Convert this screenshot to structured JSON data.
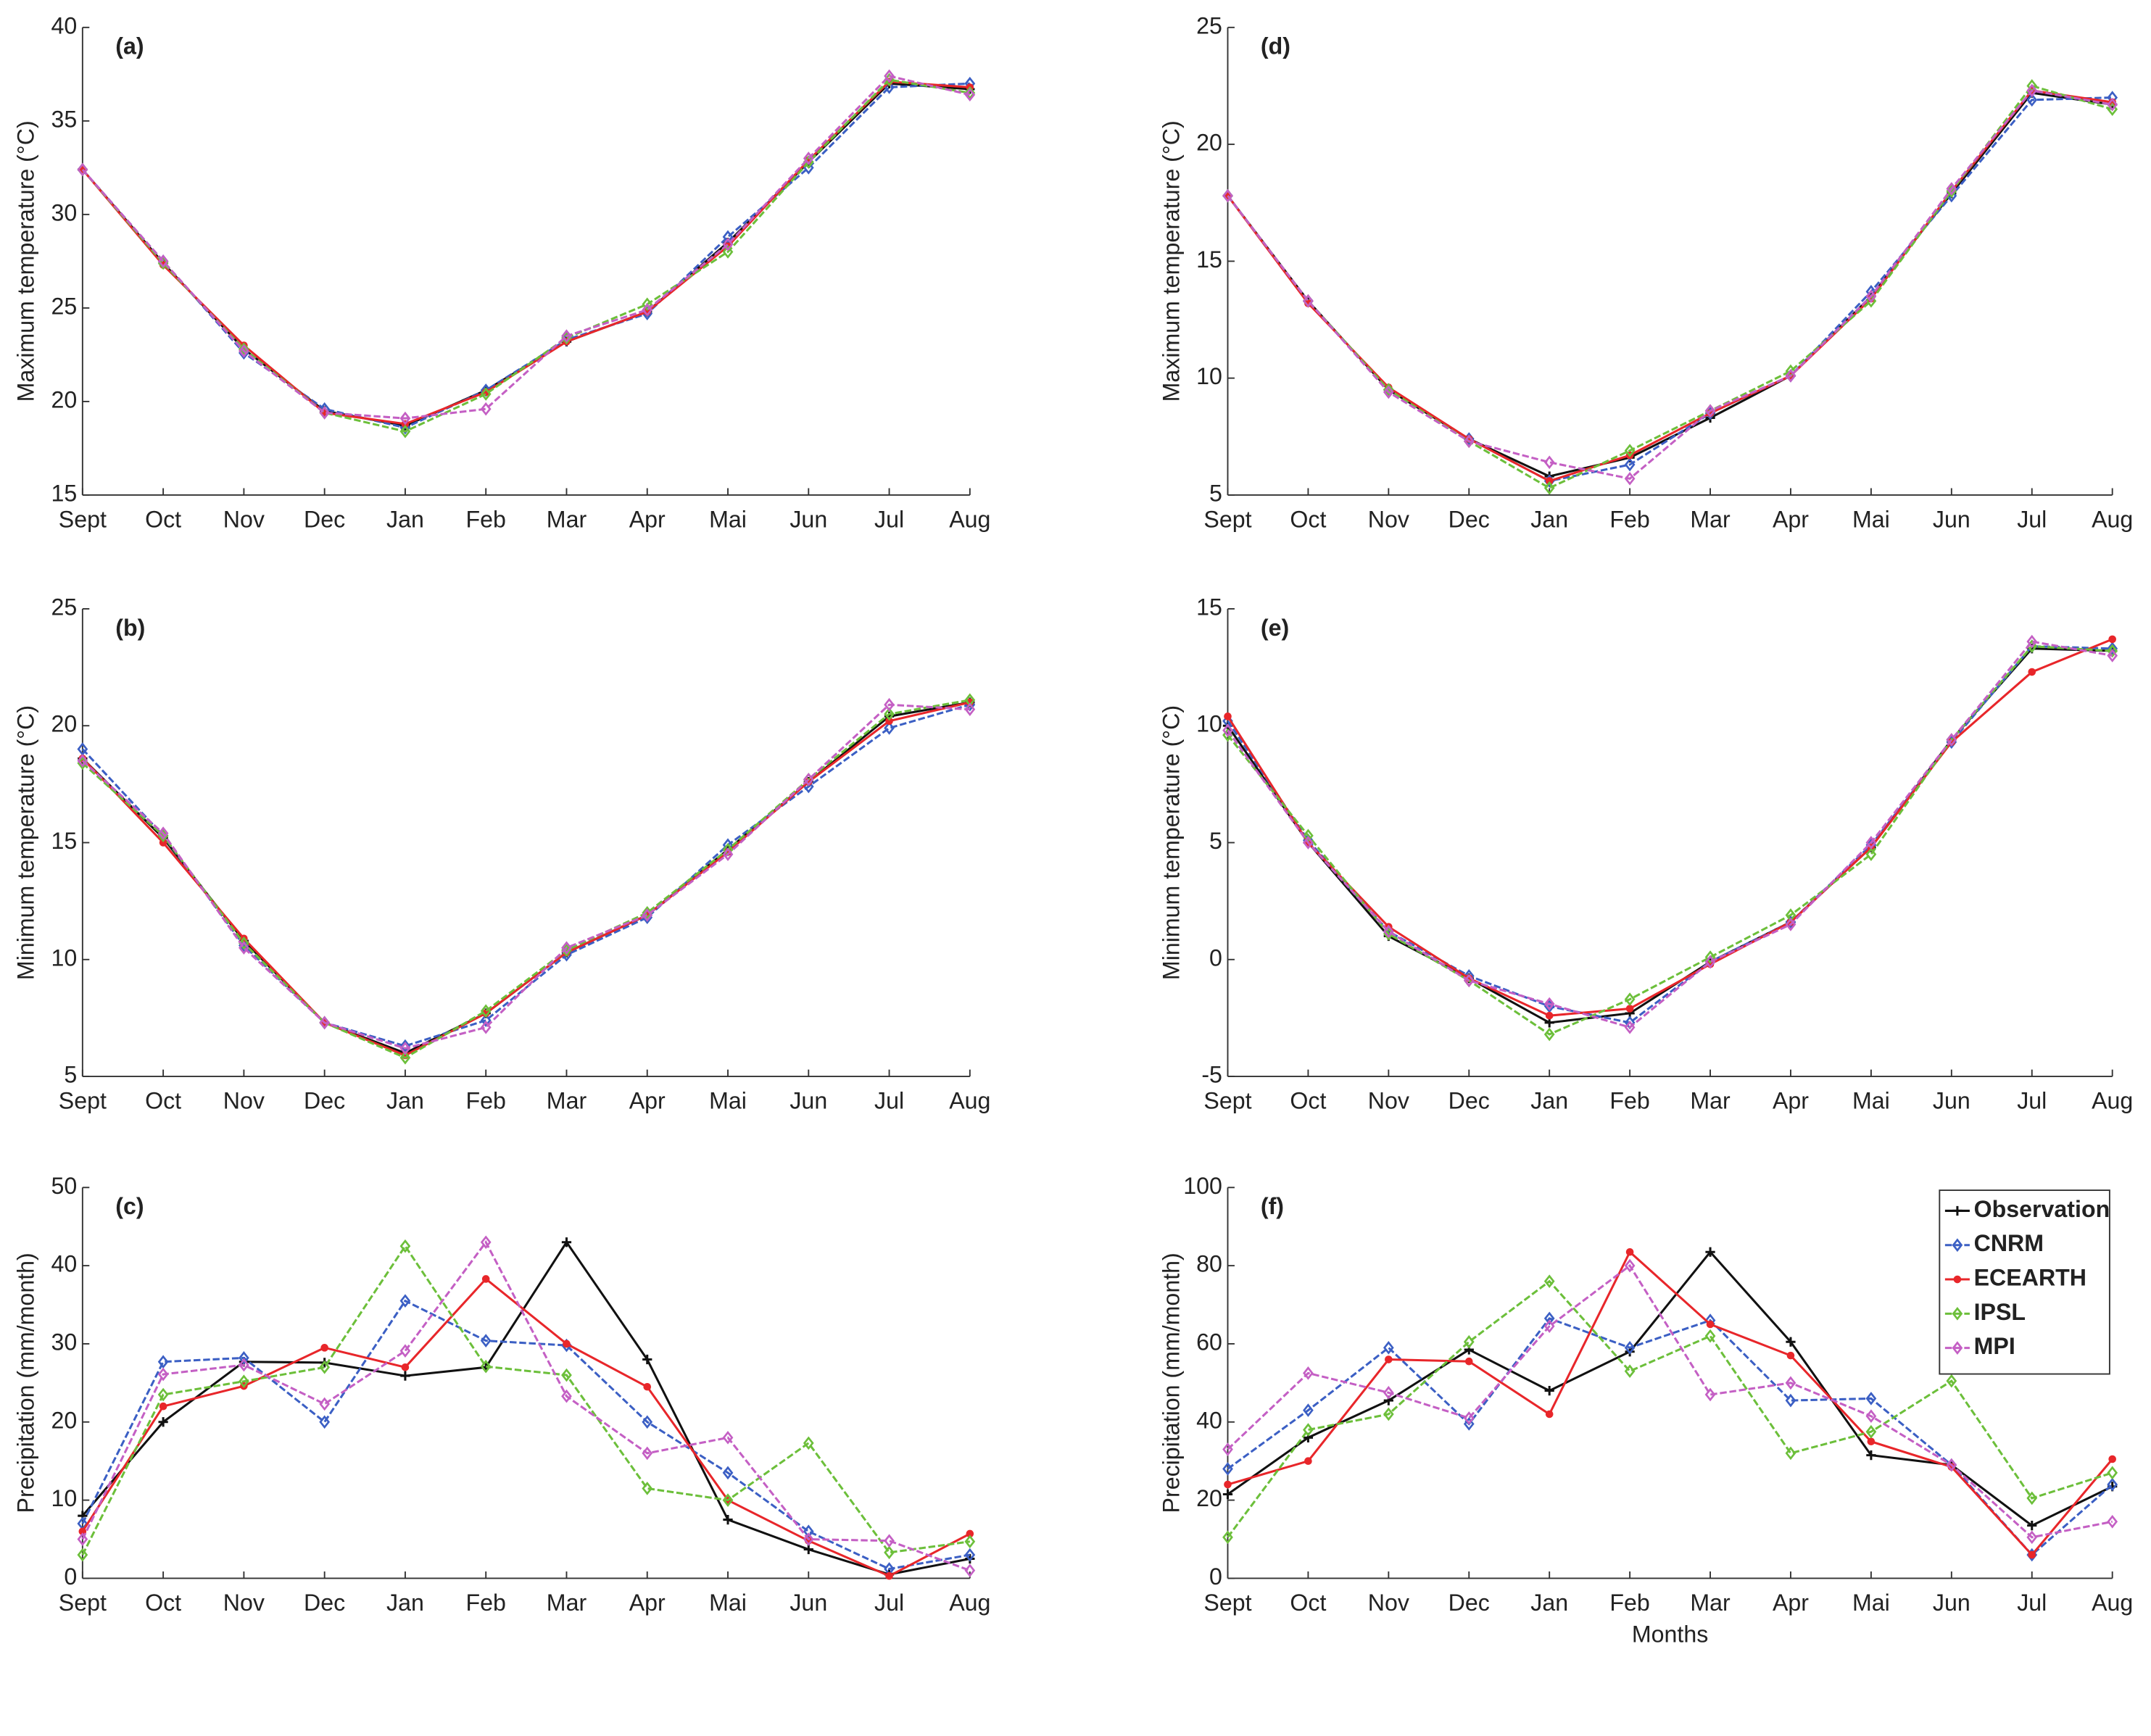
{
  "chart_data": [
    {
      "type": "line",
      "title": "(a)",
      "ylabel": "Maximum temperature (°C)",
      "categories": [
        "Sept",
        "Oct",
        "Nov",
        "Dec",
        "Jan",
        "Feb",
        "Mar",
        "Apr",
        "Mai",
        "Jun",
        "Jul",
        "Aug"
      ],
      "ylim": [
        15,
        40
      ],
      "yticks": [
        15,
        20,
        25,
        30,
        35,
        40
      ],
      "series": [
        {
          "name": "Observation",
          "color": "#111111",
          "marker": "plus",
          "linestyle": "solid",
          "values": [
            32.4,
            27.4,
            22.8,
            19.5,
            18.7,
            20.6,
            23.2,
            24.8,
            28.5,
            32.8,
            37.0,
            36.7
          ]
        },
        {
          "name": "CNRM",
          "color": "#3b5fc4",
          "marker": "diamond",
          "linestyle": "dashed",
          "values": [
            32.4,
            27.5,
            22.6,
            19.6,
            18.6,
            20.6,
            23.3,
            24.7,
            28.8,
            32.5,
            36.8,
            37.0
          ]
        },
        {
          "name": "ECEARTH",
          "color": "#e8262a",
          "marker": "dot",
          "linestyle": "solid",
          "values": [
            32.4,
            27.3,
            23.0,
            19.4,
            18.8,
            20.5,
            23.2,
            24.8,
            28.3,
            32.9,
            37.1,
            36.8
          ]
        },
        {
          "name": "IPSL",
          "color": "#6cbf3a",
          "marker": "diamond",
          "linestyle": "dashed",
          "values": [
            32.4,
            27.4,
            22.8,
            19.4,
            18.4,
            20.4,
            23.4,
            25.2,
            28.0,
            32.8,
            37.2,
            36.5
          ]
        },
        {
          "name": "MPI",
          "color": "#c45fc4",
          "marker": "diamond",
          "linestyle": "dashed",
          "values": [
            32.4,
            27.5,
            22.7,
            19.4,
            19.1,
            19.6,
            23.5,
            24.9,
            28.4,
            33.0,
            37.4,
            36.4
          ]
        }
      ]
    },
    {
      "type": "line",
      "title": "(b)",
      "ylabel": "Minimum temperature (°C)",
      "categories": [
        "Sept",
        "Oct",
        "Nov",
        "Dec",
        "Jan",
        "Feb",
        "Mar",
        "Apr",
        "Mai",
        "Jun",
        "Jul",
        "Aug"
      ],
      "ylim": [
        5,
        25
      ],
      "yticks": [
        5,
        10,
        15,
        20,
        25
      ],
      "series": [
        {
          "name": "Observation",
          "color": "#111111",
          "marker": "plus",
          "linestyle": "solid",
          "values": [
            18.6,
            15.2,
            10.8,
            7.3,
            6.0,
            7.7,
            10.3,
            11.9,
            14.7,
            17.6,
            20.4,
            21.0
          ]
        },
        {
          "name": "CNRM",
          "color": "#3b5fc4",
          "marker": "diamond",
          "linestyle": "dashed",
          "values": [
            19.0,
            15.3,
            10.6,
            7.3,
            6.3,
            7.4,
            10.2,
            11.8,
            14.9,
            17.4,
            19.9,
            20.9
          ]
        },
        {
          "name": "ECEARTH",
          "color": "#e8262a",
          "marker": "dot",
          "linestyle": "solid",
          "values": [
            18.6,
            15.0,
            10.9,
            7.3,
            5.9,
            7.7,
            10.3,
            11.9,
            14.6,
            17.6,
            20.2,
            21.0
          ]
        },
        {
          "name": "IPSL",
          "color": "#6cbf3a",
          "marker": "diamond",
          "linestyle": "dashed",
          "values": [
            18.4,
            15.3,
            10.7,
            7.3,
            5.8,
            7.8,
            10.4,
            12.0,
            14.7,
            17.7,
            20.5,
            21.1
          ]
        },
        {
          "name": "MPI",
          "color": "#c45fc4",
          "marker": "diamond",
          "linestyle": "dashed",
          "values": [
            18.5,
            15.4,
            10.5,
            7.3,
            6.2,
            7.1,
            10.5,
            11.9,
            14.5,
            17.7,
            20.9,
            20.7
          ]
        }
      ]
    },
    {
      "type": "line",
      "title": "(c)",
      "ylabel": "Precipitation (mm/month)",
      "categories": [
        "Sept",
        "Oct",
        "Nov",
        "Dec",
        "Jan",
        "Feb",
        "Mar",
        "Apr",
        "Mai",
        "Jun",
        "Jul",
        "Aug"
      ],
      "ylim": [
        0,
        50
      ],
      "yticks": [
        0,
        10,
        20,
        30,
        40,
        50
      ],
      "series": [
        {
          "name": "Observation",
          "color": "#111111",
          "marker": "plus",
          "linestyle": "solid",
          "values": [
            8,
            20,
            27.7,
            27.6,
            25.9,
            27,
            43,
            28,
            7.5,
            3.7,
            0.5,
            2.5
          ]
        },
        {
          "name": "CNRM",
          "color": "#3b5fc4",
          "marker": "diamond",
          "linestyle": "dashed",
          "values": [
            7,
            27.7,
            28.2,
            20,
            35.5,
            30.4,
            29.8,
            20,
            13.5,
            6,
            1.2,
            3
          ]
        },
        {
          "name": "ECEARTH",
          "color": "#e8262a",
          "marker": "dot",
          "linestyle": "solid",
          "values": [
            6,
            22,
            24.6,
            29.5,
            27,
            38.3,
            30,
            24.5,
            10,
            4.8,
            0.3,
            5.7
          ]
        },
        {
          "name": "IPSL",
          "color": "#6cbf3a",
          "marker": "diamond",
          "linestyle": "dashed",
          "values": [
            3,
            23.5,
            25.2,
            27,
            42.5,
            27.1,
            26,
            11.5,
            10,
            17.3,
            3.3,
            4.7
          ]
        },
        {
          "name": "MPI",
          "color": "#c45fc4",
          "marker": "diamond",
          "linestyle": "dashed",
          "values": [
            5,
            26.1,
            27.3,
            22.3,
            29.1,
            43,
            23.3,
            16,
            18,
            5,
            4.8,
            1
          ]
        }
      ]
    },
    {
      "type": "line",
      "title": "(d)",
      "ylabel": "Maximum temperature (°C)",
      "categories": [
        "Sept",
        "Oct",
        "Nov",
        "Dec",
        "Jan",
        "Feb",
        "Mar",
        "Apr",
        "Mai",
        "Jun",
        "Jul",
        "Aug"
      ],
      "ylim": [
        5,
        25
      ],
      "yticks": [
        5,
        10,
        15,
        20,
        25
      ],
      "series": [
        {
          "name": "Observation",
          "color": "#111111",
          "marker": "plus",
          "linestyle": "solid",
          "values": [
            17.8,
            13.3,
            9.5,
            7.4,
            5.8,
            6.6,
            8.3,
            10.1,
            13.5,
            17.9,
            22.2,
            21.7
          ]
        },
        {
          "name": "CNRM",
          "color": "#3b5fc4",
          "marker": "diamond",
          "linestyle": "dashed",
          "values": [
            17.8,
            13.3,
            9.5,
            7.4,
            5.6,
            6.3,
            8.5,
            10.1,
            13.7,
            17.8,
            21.9,
            22.0
          ]
        },
        {
          "name": "ECEARTH",
          "color": "#e8262a",
          "marker": "dot",
          "linestyle": "solid",
          "values": [
            17.8,
            13.2,
            9.6,
            7.4,
            5.6,
            6.7,
            8.5,
            10.1,
            13.4,
            18.0,
            22.3,
            21.8
          ]
        },
        {
          "name": "IPSL",
          "color": "#6cbf3a",
          "marker": "diamond",
          "linestyle": "dashed",
          "values": [
            17.8,
            13.3,
            9.5,
            7.3,
            5.3,
            6.9,
            8.6,
            10.3,
            13.3,
            18.0,
            22.5,
            21.5
          ]
        },
        {
          "name": "MPI",
          "color": "#c45fc4",
          "marker": "diamond",
          "linestyle": "dashed",
          "values": [
            17.8,
            13.3,
            9.4,
            7.3,
            6.4,
            5.7,
            8.6,
            10.1,
            13.5,
            18.1,
            22.3,
            21.7
          ]
        }
      ]
    },
    {
      "type": "line",
      "title": "(e)",
      "ylabel": "Minimum temperature (°C)",
      "categories": [
        "Sept",
        "Oct",
        "Nov",
        "Dec",
        "Jan",
        "Feb",
        "Mar",
        "Apr",
        "Mai",
        "Jun",
        "Jul",
        "Aug"
      ],
      "ylim": [
        -5,
        15
      ],
      "yticks": [
        -5,
        0,
        5,
        10,
        15
      ],
      "series": [
        {
          "name": "Observation",
          "color": "#111111",
          "marker": "plus",
          "linestyle": "solid",
          "values": [
            10.0,
            5.0,
            1.0,
            -0.8,
            -2.7,
            -2.3,
            -0.1,
            1.6,
            4.8,
            9.4,
            13.3,
            13.2
          ]
        },
        {
          "name": "CNRM",
          "color": "#3b5fc4",
          "marker": "diamond",
          "linestyle": "dashed",
          "values": [
            10.2,
            5.1,
            1.2,
            -0.7,
            -2.0,
            -2.7,
            -0.1,
            1.6,
            4.9,
            9.3,
            13.4,
            13.3
          ]
        },
        {
          "name": "ECEARTH",
          "color": "#e8262a",
          "marker": "dot",
          "linestyle": "solid",
          "values": [
            10.4,
            5.0,
            1.4,
            -0.8,
            -2.4,
            -2.1,
            -0.2,
            1.6,
            4.8,
            9.3,
            12.3,
            13.7
          ]
        },
        {
          "name": "IPSL",
          "color": "#6cbf3a",
          "marker": "diamond",
          "linestyle": "dashed",
          "values": [
            9.6,
            5.3,
            1.1,
            -0.9,
            -3.2,
            -1.7,
            0.1,
            1.9,
            4.5,
            9.4,
            13.4,
            13.2
          ]
        },
        {
          "name": "MPI",
          "color": "#c45fc4",
          "marker": "diamond",
          "linestyle": "dashed",
          "values": [
            9.8,
            5.0,
            1.2,
            -0.9,
            -1.9,
            -2.9,
            -0.1,
            1.5,
            5.0,
            9.4,
            13.6,
            13.0
          ]
        }
      ]
    },
    {
      "type": "line",
      "title": "(f)",
      "ylabel": "Precipitation (mm/month)",
      "xlabel": "Months",
      "legend": "upper-right",
      "categories": [
        "Sept",
        "Oct",
        "Nov",
        "Dec",
        "Jan",
        "Feb",
        "Mar",
        "Apr",
        "Mai",
        "Jun",
        "Jul",
        "Aug"
      ],
      "ylim": [
        0,
        100
      ],
      "yticks": [
        0,
        20,
        40,
        60,
        80,
        100
      ],
      "series": [
        {
          "name": "Observation",
          "color": "#111111",
          "marker": "plus",
          "linestyle": "solid",
          "values": [
            21.5,
            36,
            45.5,
            58.5,
            48,
            58,
            83.5,
            60.5,
            31.5,
            29,
            13.5,
            23.5
          ]
        },
        {
          "name": "CNRM",
          "color": "#3b5fc4",
          "marker": "diamond",
          "linestyle": "dashed",
          "values": [
            28,
            43,
            59,
            39.5,
            66.5,
            59,
            66,
            45.5,
            46,
            29,
            6,
            24
          ]
        },
        {
          "name": "ECEARTH",
          "color": "#e8262a",
          "marker": "dot",
          "linestyle": "solid",
          "values": [
            24,
            30,
            56,
            55.5,
            42,
            83.5,
            65,
            57,
            35,
            28.5,
            6,
            30.5
          ]
        },
        {
          "name": "IPSL",
          "color": "#6cbf3a",
          "marker": "diamond",
          "linestyle": "dashed",
          "values": [
            10.5,
            38,
            42,
            60.5,
            76,
            53,
            62,
            32,
            37.5,
            50.5,
            20.5,
            27
          ]
        },
        {
          "name": "MPI",
          "color": "#c45fc4",
          "marker": "diamond",
          "linestyle": "dashed",
          "values": [
            33,
            52.5,
            47.5,
            41,
            64.5,
            80,
            47,
            50,
            41.5,
            29,
            10.5,
            14.5
          ]
        }
      ]
    }
  ]
}
